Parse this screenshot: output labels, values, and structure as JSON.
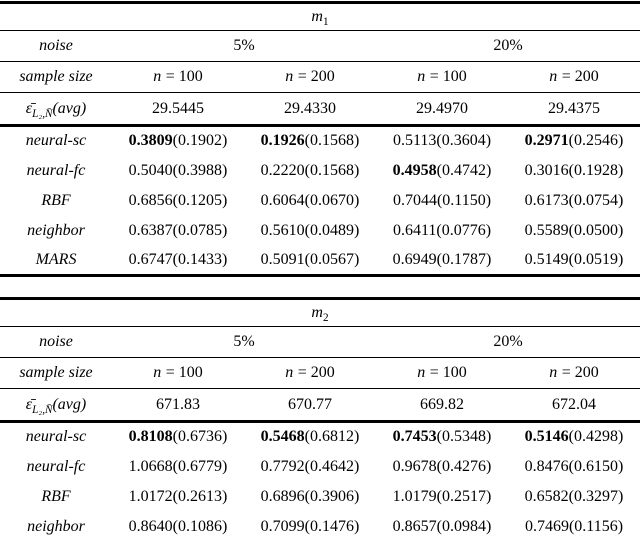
{
  "tables": [
    {
      "title": {
        "base": "m",
        "sub": "1"
      },
      "noise": {
        "label": "noise",
        "values": [
          "5%",
          "20%"
        ]
      },
      "sample": {
        "label": "sample size",
        "var": "n",
        "values": [
          "= 100",
          "= 200",
          "= 100",
          "= 200"
        ]
      },
      "avg": {
        "eps": "ε̄",
        "sub": "L₂,N̄",
        "rest": "(avg)",
        "values": [
          "29.5445",
          "29.4330",
          "29.4970",
          "29.4375"
        ]
      },
      "rows": [
        {
          "method": "neural-sc",
          "cells": [
            {
              "v": "0.3809",
              "s": "(0.1902)",
              "bold": true
            },
            {
              "v": "0.1926",
              "s": "(0.1568)",
              "bold": true
            },
            {
              "v": "0.5113",
              "s": "(0.3604)",
              "bold": false
            },
            {
              "v": "0.2971",
              "s": "(0.2546)",
              "bold": true
            }
          ]
        },
        {
          "method": "neural-fc",
          "cells": [
            {
              "v": "0.5040",
              "s": "(0.3988)",
              "bold": false
            },
            {
              "v": "0.2220",
              "s": "(0.1568)",
              "bold": false
            },
            {
              "v": "0.4958",
              "s": "(0.4742)",
              "bold": true
            },
            {
              "v": "0.3016",
              "s": "(0.1928)",
              "bold": false
            }
          ]
        },
        {
          "method": "RBF",
          "cells": [
            {
              "v": "0.6856",
              "s": "(0.1205)",
              "bold": false
            },
            {
              "v": "0.6064",
              "s": "(0.0670)",
              "bold": false
            },
            {
              "v": "0.7044",
              "s": "(0.1150)",
              "bold": false
            },
            {
              "v": "0.6173",
              "s": "(0.0754)",
              "bold": false
            }
          ]
        },
        {
          "method": "neighbor",
          "cells": [
            {
              "v": "0.6387",
              "s": "(0.0785)",
              "bold": false
            },
            {
              "v": "0.5610",
              "s": "(0.0489)",
              "bold": false
            },
            {
              "v": "0.6411",
              "s": "(0.0776)",
              "bold": false
            },
            {
              "v": "0.5589",
              "s": "(0.0500)",
              "bold": false
            }
          ]
        },
        {
          "method": "MARS",
          "cells": [
            {
              "v": "0.6747",
              "s": "(0.1433)",
              "bold": false
            },
            {
              "v": "0.5091",
              "s": "(0.0567)",
              "bold": false
            },
            {
              "v": "0.6949",
              "s": "(0.1787)",
              "bold": false
            },
            {
              "v": "0.5149",
              "s": "(0.0519)",
              "bold": false
            }
          ]
        }
      ]
    },
    {
      "title": {
        "base": "m",
        "sub": "2"
      },
      "noise": {
        "label": "noise",
        "values": [
          "5%",
          "20%"
        ]
      },
      "sample": {
        "label": "sample size",
        "var": "n",
        "values": [
          "= 100",
          "= 200",
          "= 100",
          "= 200"
        ]
      },
      "avg": {
        "eps": "ε̄",
        "sub": "L₂,N̄",
        "rest": "(avg)",
        "values": [
          "671.83",
          "670.77",
          "669.82",
          "672.04"
        ]
      },
      "rows": [
        {
          "method": "neural-sc",
          "cells": [
            {
              "v": "0.8108",
              "s": "(0.6736)",
              "bold": true
            },
            {
              "v": "0.5468",
              "s": "(0.6812)",
              "bold": true
            },
            {
              "v": "0.7453",
              "s": "(0.5348)",
              "bold": true
            },
            {
              "v": "0.5146",
              "s": "(0.4298)",
              "bold": true
            }
          ]
        },
        {
          "method": "neural-fc",
          "cells": [
            {
              "v": "1.0668",
              "s": "(0.6779)",
              "bold": false
            },
            {
              "v": "0.7792",
              "s": "(0.4642)",
              "bold": false
            },
            {
              "v": "0.9678",
              "s": "(0.4276)",
              "bold": false
            },
            {
              "v": "0.8476",
              "s": "(0.6150)",
              "bold": false
            }
          ]
        },
        {
          "method": "RBF",
          "cells": [
            {
              "v": "1.0172",
              "s": "(0.2613)",
              "bold": false
            },
            {
              "v": "0.6896",
              "s": "(0.3906)",
              "bold": false
            },
            {
              "v": "1.0179",
              "s": "(0.2517)",
              "bold": false
            },
            {
              "v": "0.6582",
              "s": "(0.3297)",
              "bold": false
            }
          ]
        },
        {
          "method": "neighbor",
          "cells": [
            {
              "v": "0.8640",
              "s": "(0.1086)",
              "bold": false
            },
            {
              "v": "0.7099",
              "s": "(0.1476)",
              "bold": false
            },
            {
              "v": "0.8657",
              "s": "(0.0984)",
              "bold": false
            },
            {
              "v": "0.7469",
              "s": "(0.1156)",
              "bold": false
            }
          ]
        }
      ]
    }
  ]
}
